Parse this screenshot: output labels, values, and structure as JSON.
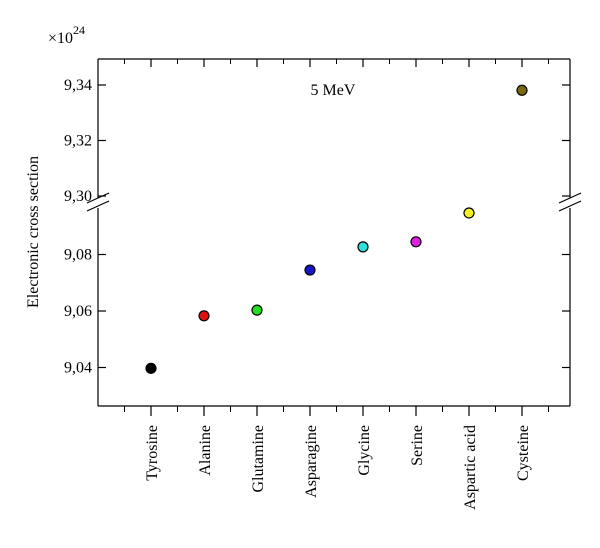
{
  "chart_data": {
    "type": "scatter",
    "title": "",
    "annotation": "5 MeV",
    "ylabel": "Electronic cross section",
    "y_multiplier": "×10",
    "y_multiplier_exp": "24",
    "xlabel": "",
    "categories": [
      "Tyrosine",
      "Alanine",
      "Glutamine",
      "Asparagine",
      "Glycine",
      "Serine",
      "Aspartic acid",
      "Cysteine"
    ],
    "values": [
      9.0397,
      9.0583,
      9.0603,
      9.0745,
      9.0827,
      9.0845,
      9.0947,
      9.3381
    ],
    "colors": [
      "#000000",
      "#e01010",
      "#22dd22",
      "#1414c8",
      "#2ee0e0",
      "#e020e0",
      "#f5f020",
      "#7a6a10"
    ],
    "y_segments": [
      {
        "ylim": [
          9.025,
          9.1
        ],
        "ticks": [
          9.04,
          9.06,
          9.08
        ],
        "tick_labels": [
          "9,04",
          "9,06",
          "9,08"
        ]
      },
      {
        "ylim": [
          9.3,
          9.35
        ],
        "ticks": [
          9.3,
          9.32,
          9.34
        ],
        "tick_labels": [
          "9,30",
          "9,32",
          "9,34"
        ]
      }
    ],
    "axis_break": true,
    "grid": false,
    "legend": "none"
  }
}
